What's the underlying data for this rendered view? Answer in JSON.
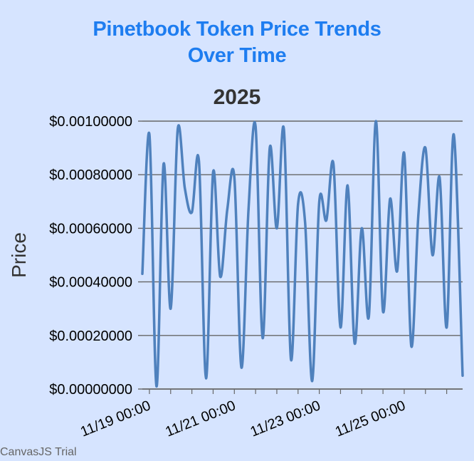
{
  "chart_data": {
    "type": "line",
    "title_line1": "Pinetbook Token Price Trends",
    "title_line2": "Over Time",
    "subtitle": "2025",
    "ylabel": "Price",
    "xlabel": "",
    "y_ticks": [
      "$0.00000000",
      "$0.00020000",
      "$0.00040000",
      "$0.00060000",
      "$0.00080000",
      "$0.00100000"
    ],
    "x_ticks": [
      "11/19 00:00",
      "11/21 00:00",
      "11/23 00:00",
      "11/25 00:00"
    ],
    "ylim": [
      0,
      0.001
    ],
    "xlim": [
      "2025-11-18 20:00",
      "2025-11-26 09:00"
    ],
    "grid": true,
    "series_color": "#4f81bd",
    "series": [
      {
        "x": [
          "2025-11-18 20:00",
          "2025-11-19 00:00",
          "2025-11-19 04:00",
          "2025-11-19 08:00",
          "2025-11-19 12:00",
          "2025-11-19 16:00",
          "2025-11-19 20:00",
          "2025-11-20 00:00",
          "2025-11-20 04:00",
          "2025-11-20 08:00",
          "2025-11-20 12:00",
          "2025-11-20 16:00",
          "2025-11-20 20:00",
          "2025-11-21 00:00",
          "2025-11-21 04:00",
          "2025-11-21 08:00",
          "2025-11-21 12:00",
          "2025-11-21 16:00",
          "2025-11-21 20:00",
          "2025-11-22 00:00",
          "2025-11-22 04:00",
          "2025-11-22 08:00",
          "2025-11-22 12:00",
          "2025-11-22 16:00",
          "2025-11-22 20:00",
          "2025-11-23 00:00",
          "2025-11-23 04:00",
          "2025-11-23 08:00",
          "2025-11-23 12:00",
          "2025-11-23 16:00",
          "2025-11-23 20:00",
          "2025-11-24 00:00",
          "2025-11-24 04:00",
          "2025-11-24 08:00",
          "2025-11-24 12:00",
          "2025-11-24 16:00",
          "2025-11-24 20:00",
          "2025-11-25 00:00",
          "2025-11-25 04:00",
          "2025-11-25 08:00",
          "2025-11-25 12:00",
          "2025-11-25 16:00",
          "2025-11-25 20:00",
          "2025-11-26 00:00",
          "2025-11-26 04:00",
          "2025-11-26 09:00"
        ],
        "y": [
          0.00043,
          0.00095,
          1e-05,
          0.00084,
          0.0003,
          0.00097,
          0.00075,
          0.00066,
          0.00085,
          4e-05,
          0.00081,
          0.00042,
          0.00067,
          0.00079,
          8e-05,
          0.00067,
          0.00098,
          0.00019,
          0.0009,
          0.0006,
          0.00097,
          0.00011,
          0.00069,
          0.00062,
          3e-05,
          0.0007,
          0.00063,
          0.00084,
          0.00023,
          0.00076,
          0.00017,
          0.0006,
          0.00027,
          0.001,
          0.00029,
          0.00071,
          0.00044,
          0.00088,
          0.00016,
          0.00065,
          0.0009,
          0.0005,
          0.00079,
          0.00023,
          0.00095,
          5e-05
        ]
      }
    ]
  },
  "credit": "CanvasJS Trial"
}
